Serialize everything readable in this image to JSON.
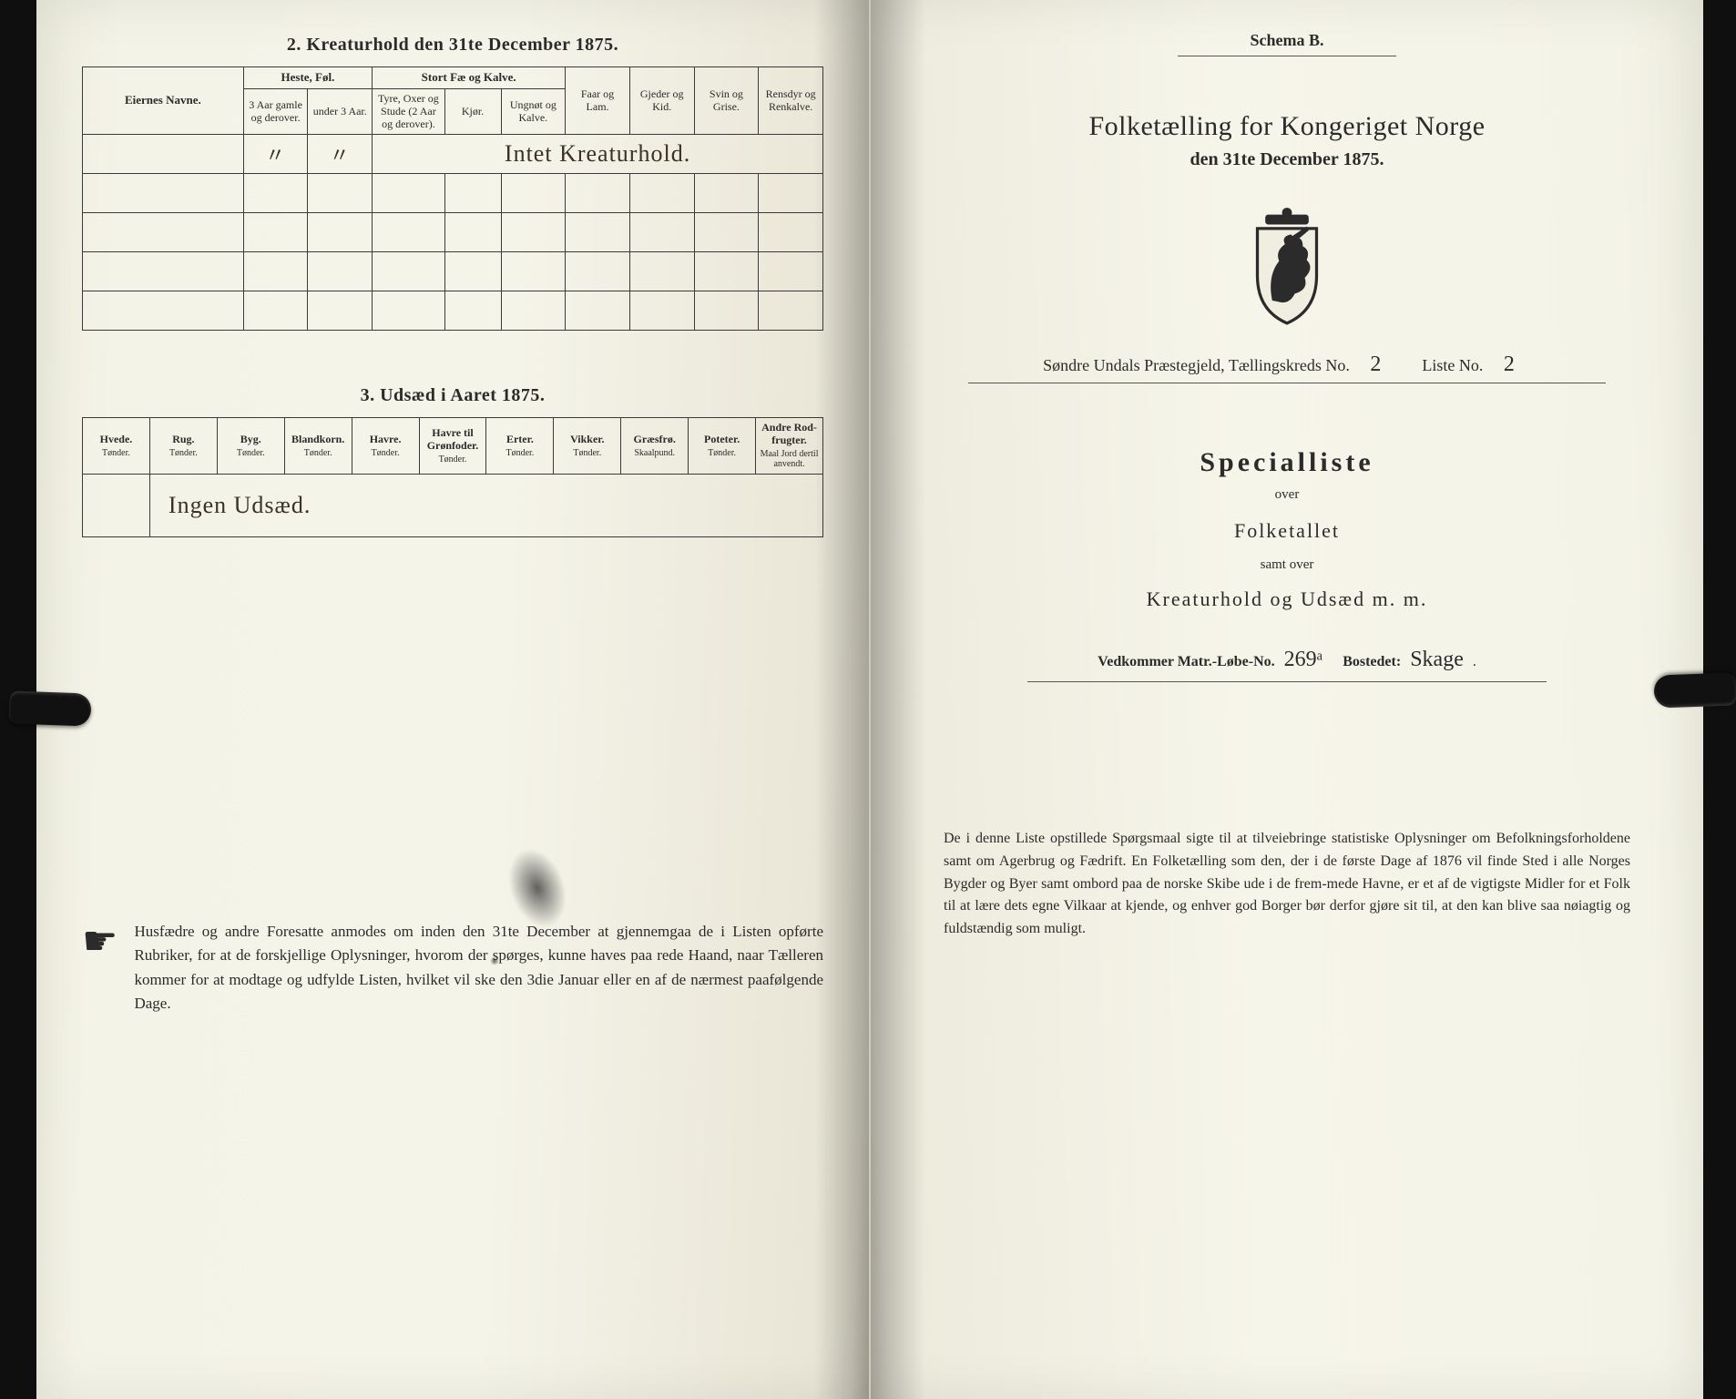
{
  "left": {
    "section2_title": "2.  Kreaturhold den 31te December 1875.",
    "table2": {
      "owners_label": "Eiernes Navne.",
      "group_horses": "Heste, Føl.",
      "group_cattle": "Stort Fæ og Kalve.",
      "horses_col1": "3 Aar gamle og derover.",
      "horses_col2": "under 3 Aar.",
      "cattle_col1": "Tyre, Oxer og Stude (2 Aar og derover).",
      "cattle_col2": "Kjør.",
      "cattle_col3": "Ungnøt og Kalve.",
      "sheep": "Faar og Lam.",
      "goats": "Gjeder og Kid.",
      "pigs": "Svin og Grise.",
      "reindeer": "Rensdyr og Renkalve.",
      "row_hand": "Intet Kreaturhold."
    },
    "section3_title": "3.  Udsæd i Aaret 1875.",
    "table3": {
      "cols": [
        {
          "h": "Hvede.",
          "s": "Tønder."
        },
        {
          "h": "Rug.",
          "s": "Tønder."
        },
        {
          "h": "Byg.",
          "s": "Tønder."
        },
        {
          "h": "Blandkorn.",
          "s": "Tønder."
        },
        {
          "h": "Havre.",
          "s": "Tønder."
        },
        {
          "h": "Havre til Grønfoder.",
          "s": "Tønder."
        },
        {
          "h": "Erter.",
          "s": "Tønder."
        },
        {
          "h": "Vikker.",
          "s": "Tønder."
        },
        {
          "h": "Græsfrø.",
          "s": "Skaalpund."
        },
        {
          "h": "Poteter.",
          "s": "Tønder."
        },
        {
          "h": "Andre Rod-frugter.",
          "s": "Maal Jord dertil anvendt."
        }
      ],
      "row_hand": "Ingen Udsæd."
    },
    "note": "Husfædre og andre Foresatte anmodes om inden den 31te December at gjennemgaa de i Listen opførte Rubriker, for at de forskjellige Oplysninger, hvorom der spørges, kunne haves paa rede Haand, naar Tælleren kommer for at modtage og udfylde Listen, hvilket vil ske den 3die Januar eller en af de nærmest paafølgende Dage."
  },
  "right": {
    "schema": "Schema B.",
    "title": "Folketælling for Kongeriget Norge",
    "subtitle": "den 31te December 1875.",
    "parish_prefix": "Søndre Undals",
    "parish_word": "Præstegjeld, Tællingskreds No.",
    "kreds_no": "2",
    "liste_word": "Liste No.",
    "liste_no": "2",
    "special": "Specialliste",
    "over": "over",
    "folketallet": "Folketallet",
    "samt": "samt over",
    "kreatur": "Kreaturhold og Udsæd m. m.",
    "vedkommer_label": "Vedkommer Matr.-Løbe-No.",
    "matr_no": "269ᵃ",
    "bostedet_label": "Bostedet:",
    "bostedet": "Skage",
    "bottom": "De i denne Liste opstillede Spørgsmaal sigte til at tilveiebringe statistiske Oplysninger om Befolkningsforholdene samt om Agerbrug og Fædrift. En Folketælling som den, der i de første Dage af 1876 vil finde Sted i alle Norges Bygder og Byer samt ombord paa de norske Skibe ude i de frem-mede Havne, er et af de vigtigste Midler for et Folk til at lære dets egne Vilkaar at kjende, og enhver god Borger bør derfor gjøre sit til, at den kan blive saa nøiagtig og fuldstændig som muligt."
  },
  "colors": {
    "ink": "#2b2b2b",
    "hand": "#3b3128",
    "paper": "#f5f4e9",
    "rule": "#3a3a3a"
  }
}
